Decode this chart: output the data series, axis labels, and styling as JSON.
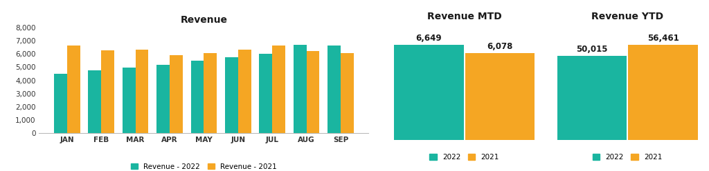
{
  "revenue_months": [
    "JAN",
    "FEB",
    "MAR",
    "APR",
    "MAY",
    "JUN",
    "JUL",
    "AUG",
    "SEP"
  ],
  "revenue_2022": [
    4500,
    4750,
    4950,
    5170,
    5500,
    5750,
    6020,
    6700,
    6650
  ],
  "revenue_2021": [
    6620,
    6280,
    6300,
    5920,
    6080,
    6320,
    6620,
    6230,
    6060
  ],
  "mtd_2022": 6649,
  "mtd_2021": 6078,
  "ytd_2022": 50015,
  "ytd_2021": 56461,
  "color_2022": "#1ab5a0",
  "color_2021": "#f5a623",
  "bg_color": "#ffffff",
  "title_main": "Revenue",
  "title_mtd": "Revenue MTD",
  "title_ytd": "Revenue YTD",
  "legend_2022": "Revenue - 2022",
  "legend_2021": "Revenue - 2021",
  "legend_mtd_2022": "2022",
  "legend_mtd_2021": "2021",
  "ylim_main": [
    0,
    8000
  ],
  "yticks_main": [
    0,
    1000,
    2000,
    3000,
    4000,
    5000,
    6000,
    7000,
    8000
  ]
}
